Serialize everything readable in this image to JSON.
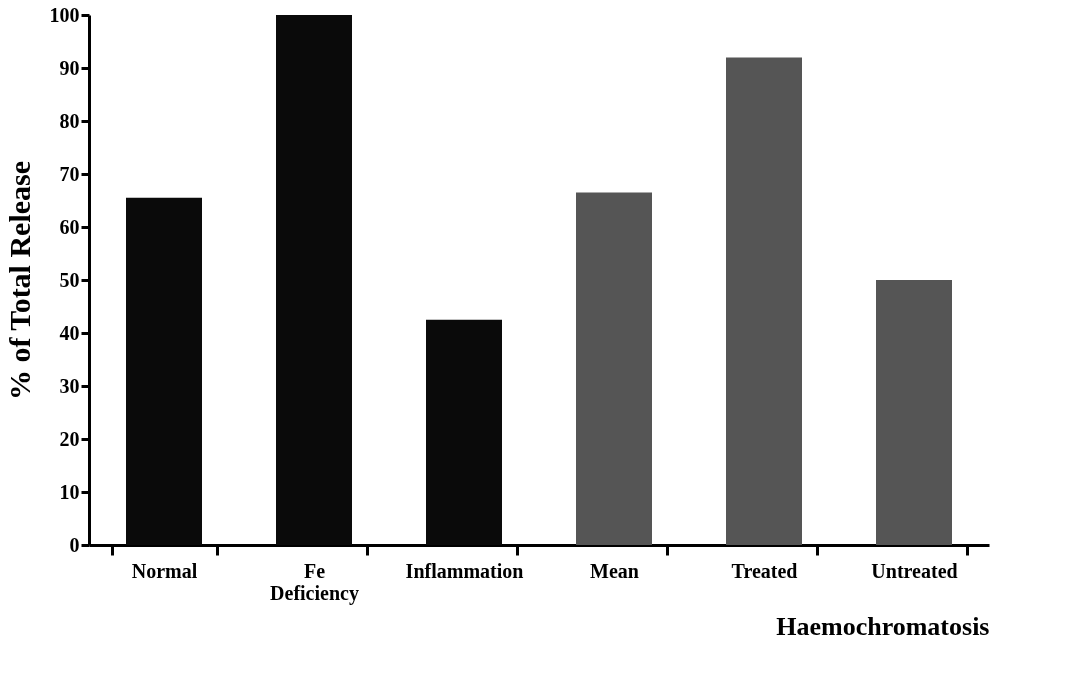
{
  "chart_data": {
    "type": "bar",
    "ylabel": "% of Total Release",
    "xlabel": "Haemochromatosis",
    "categories": [
      "Normal",
      "Fe Deficiency",
      "Inflammation",
      "Mean",
      "Treated",
      "Untreated"
    ],
    "values": [
      65.5,
      100,
      42.5,
      66.5,
      92,
      50
    ],
    "colors": [
      "#0a0a0a",
      "#0a0a0a",
      "#0a0a0a",
      "#555555",
      "#555555",
      "#555555"
    ],
    "ylim": [
      0,
      100
    ],
    "yticks": [
      0,
      10,
      20,
      30,
      40,
      50,
      60,
      70,
      80,
      90,
      100
    ],
    "grid": false
  }
}
